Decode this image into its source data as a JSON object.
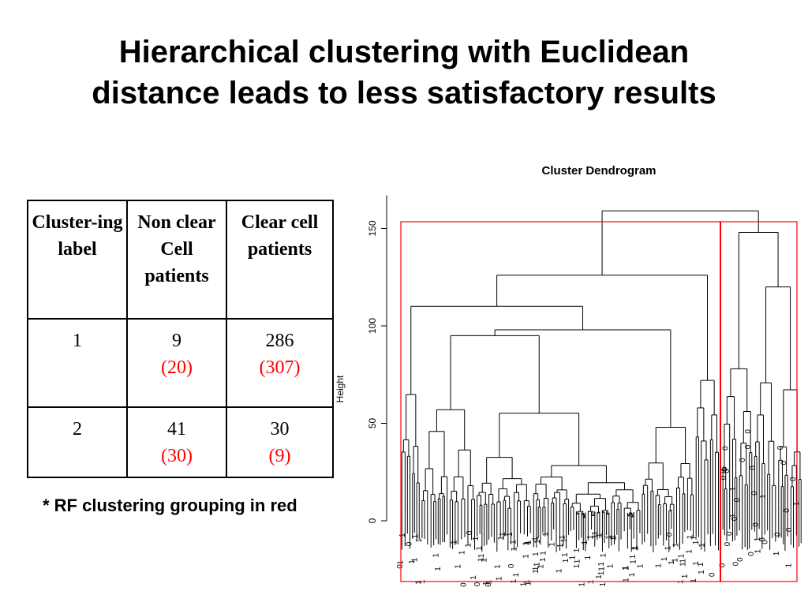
{
  "title": {
    "line1": "Hierarchical clustering with Euclidean",
    "line2": "distance leads to less satisfactory results"
  },
  "table": {
    "headers": [
      "Cluster-ing label",
      "Non clear Cell patients",
      "Clear cell patients"
    ],
    "rows": [
      {
        "label": "1",
        "non_clear": "9",
        "non_clear_rf": "(20)",
        "clear": "286",
        "clear_rf": "(307)"
      },
      {
        "label": "2",
        "non_clear": "41",
        "non_clear_rf": "(30)",
        "clear": "30",
        "clear_rf": "(9)"
      }
    ]
  },
  "note": "* RF clustering grouping in red",
  "colors": {
    "rf_values": "#ff0000",
    "cluster_boxes": "#ff0000",
    "dendrogram": "#000000"
  },
  "chart_data": {
    "type": "dendrogram",
    "title": "Cluster Dendrogram",
    "ylabel": "Height",
    "xlabel": "",
    "ylim": [
      0,
      160
    ],
    "yticks": [
      0,
      50,
      100,
      150
    ],
    "leaf_labels": [
      "1",
      "0"
    ],
    "top_merges": [
      {
        "height": 159,
        "note": "root merge of the two main clusters"
      },
      {
        "height": 126,
        "note": "left subtree merge"
      },
      {
        "height": 148,
        "note": "right subtree merge"
      },
      {
        "height": 110,
        "note": "left subtree secondary merge"
      },
      {
        "height": 95,
        "note": "left subtree tertiary merge"
      },
      {
        "height": 120,
        "note": "right subtree secondary merge"
      }
    ],
    "clusters": [
      {
        "label": "1",
        "box": "left"
      },
      {
        "label": "2",
        "box": "right"
      }
    ]
  }
}
